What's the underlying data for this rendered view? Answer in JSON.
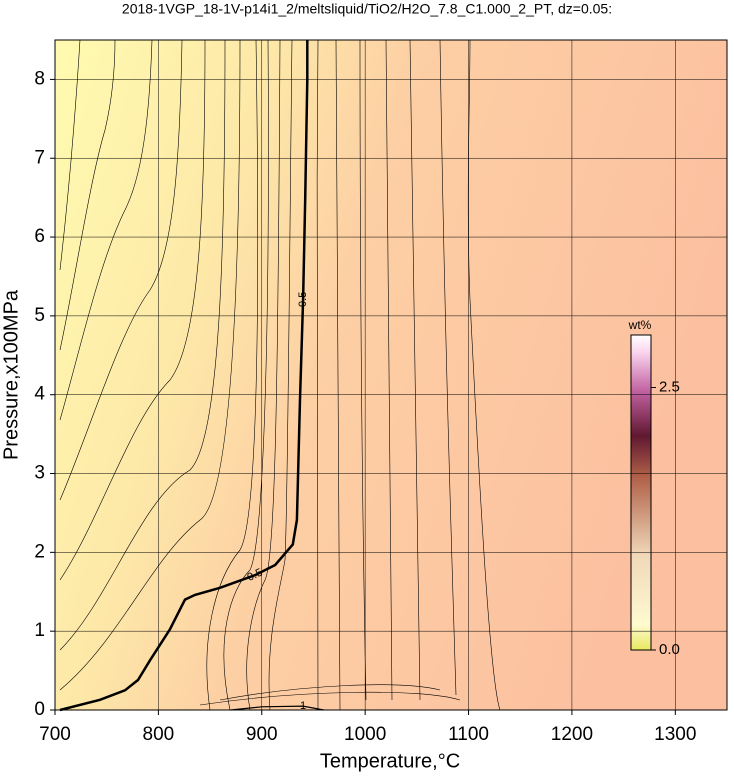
{
  "chart_data": {
    "type": "contour",
    "title": "2018-1VGP_18-1V-p14i1_2/meltsliquid/TiO2/H2O_7.8_C1.000_2_PT, dz=0.05:",
    "xlabel": "Temperature,°C",
    "ylabel": "Pressure,x100MPa",
    "xlim": [
      700,
      1350
    ],
    "ylim": [
      0,
      8.5
    ],
    "xticks": [
      700,
      800,
      900,
      1000,
      1100,
      1200,
      1300
    ],
    "yticks": [
      0,
      1,
      2,
      3,
      4,
      5,
      6,
      7,
      8
    ],
    "grid": true,
    "colorbar": {
      "label": "wt%",
      "lim": [
        0,
        3.0
      ],
      "ticks": [
        {
          "value": 0,
          "label": "0.0"
        },
        {
          "value": 2.5,
          "label": "2.5"
        }
      ]
    },
    "series": [
      {
        "name": "0.5",
        "color": "#000000",
        "x": [
          704.8,
          743.5,
          767.7,
          780.3,
          791.9,
          811,
          825.7,
          835.4,
          859.6,
          893.4,
          913,
          930,
          934,
          937,
          940,
          942,
          944,
          944
        ],
        "values": [
          0,
          0.13,
          0.25,
          0.38,
          0.63,
          1.02,
          1.4,
          1.46,
          1.55,
          1.71,
          1.84,
          2.1,
          2.41,
          3.94,
          5.21,
          6.48,
          8.0,
          8.5
        ]
      },
      {
        "name": "1",
        "color": "#000000",
        "x": [
          870,
          900,
          940,
          960
        ],
        "values": [
          0,
          0.04,
          0.05,
          0
        ]
      }
    ]
  }
}
